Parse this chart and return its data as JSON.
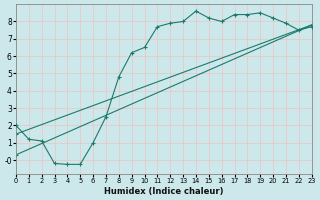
{
  "xlabel": "Humidex (Indice chaleur)",
  "bg_color": "#cce8ea",
  "grid_color": "#e8c8c8",
  "line_color": "#1a7a6e",
  "xlim": [
    0,
    23
  ],
  "ylim": [
    -0.8,
    9.0
  ],
  "xticks": [
    0,
    1,
    2,
    3,
    4,
    5,
    6,
    7,
    8,
    9,
    10,
    11,
    12,
    13,
    14,
    15,
    16,
    17,
    18,
    19,
    20,
    21,
    22,
    23
  ],
  "yticks": [
    0,
    1,
    2,
    3,
    4,
    5,
    6,
    7,
    8
  ],
  "ytick_labels": [
    "-0",
    "1",
    "2",
    "3",
    "4",
    "5",
    "6",
    "7",
    "8"
  ],
  "line1_x": [
    0,
    1,
    2,
    3,
    4,
    5,
    6,
    7,
    8,
    9,
    10,
    11,
    12,
    13,
    14,
    15,
    16,
    17,
    18,
    19,
    20,
    21,
    22,
    23
  ],
  "line1_y": [
    2.0,
    1.2,
    1.1,
    -0.2,
    -0.25,
    -0.25,
    1.0,
    2.5,
    4.8,
    6.2,
    6.5,
    7.7,
    7.9,
    8.0,
    8.6,
    8.2,
    8.0,
    8.4,
    8.4,
    8.5,
    8.2,
    7.9,
    7.5,
    7.7
  ],
  "line2_x": [
    0,
    23
  ],
  "line2_y": [
    0.3,
    7.8
  ],
  "line3_x": [
    0,
    23
  ],
  "line3_y": [
    1.5,
    7.8
  ]
}
